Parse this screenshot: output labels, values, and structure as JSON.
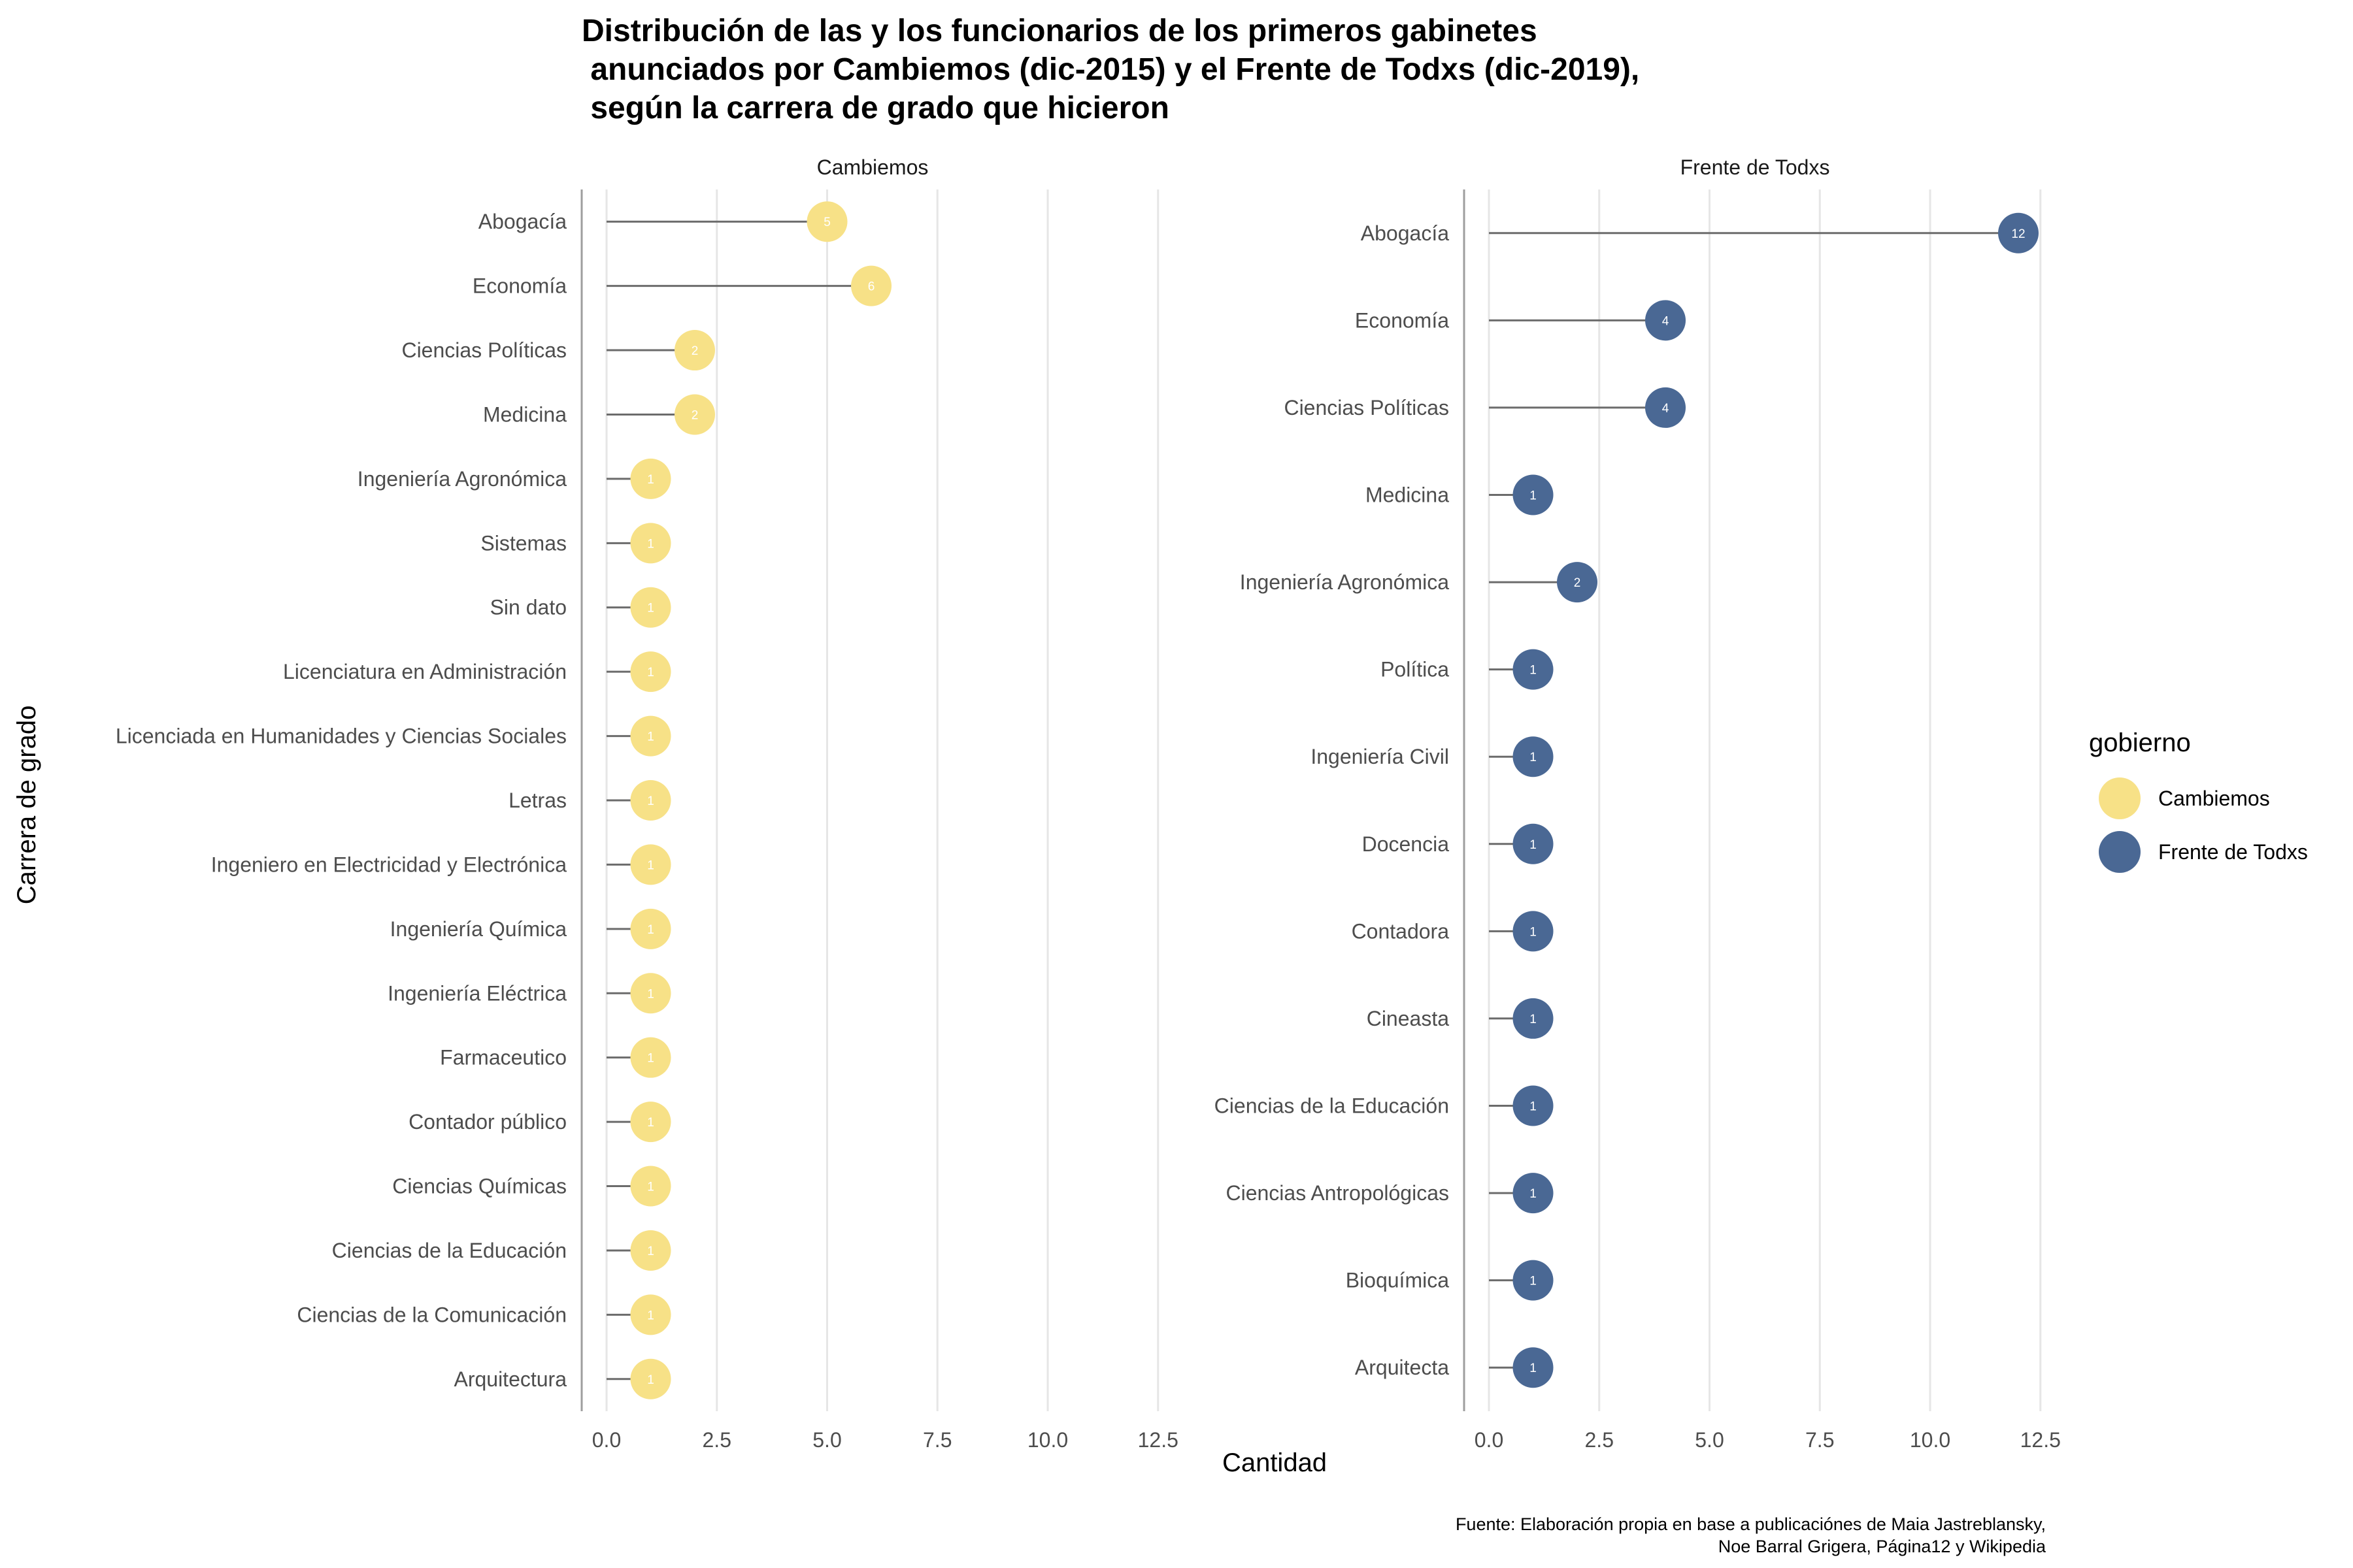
{
  "chart_data": {
    "type": "lollipop",
    "title_lines": [
      "Distribución de las y los funcionarios de los primeros gabinetes",
      " anunciados por Cambiemos (dic-2015) y el Frente de Todxs (dic-2019),",
      " según la carrera de grado que hicieron"
    ],
    "xlabel": "Cantidad",
    "ylabel": "Carrera de grado",
    "xlim": [
      0,
      12.5
    ],
    "x_ticks": [
      "0.0",
      "2.5",
      "5.0",
      "7.5",
      "10.0",
      "12.5"
    ],
    "x_tick_values": [
      0,
      2.5,
      5,
      7.5,
      10,
      12.5
    ],
    "legend": {
      "title": "gobierno",
      "entries": [
        {
          "name": "Cambiemos",
          "color": "#f7e187"
        },
        {
          "name": "Frente de Todxs",
          "color": "#4a6894"
        }
      ]
    },
    "caption_lines": [
      "Fuente: Elaboración propia en base a publicaciónes de Maia Jastreblansky,",
      "Noe Barral Grigera, Página12 y Wikipedia"
    ],
    "panels": [
      {
        "name": "Cambiemos",
        "color": "#f7e187",
        "label_color": "#ffffff",
        "categories": [
          "Abogacía",
          "Economía",
          "Ciencias Políticas",
          "Medicina",
          "Ingeniería Agronómica",
          "Sistemas",
          "Sin dato",
          "Licenciatura en Administración",
          "Licenciada en Humanidades y Ciencias Sociales",
          "Letras",
          "Ingeniero en Electricidad y Electrónica",
          "Ingeniería Química",
          "Ingeniería Eléctrica",
          "Farmaceutico",
          "Contador público",
          "Ciencias Químicas",
          "Ciencias de la Educación",
          "Ciencias de la Comunicación",
          "Arquitectura"
        ],
        "values": [
          5,
          6,
          2,
          2,
          1,
          1,
          1,
          1,
          1,
          1,
          1,
          1,
          1,
          1,
          1,
          1,
          1,
          1,
          1
        ]
      },
      {
        "name": "Frente de Todxs",
        "color": "#4a6894",
        "label_color": "#ffffff",
        "categories": [
          "Abogacía",
          "Economía",
          "Ciencias Políticas",
          "Medicina",
          "Ingeniería Agronómica",
          "Política",
          "Ingeniería Civil",
          "Docencia",
          "Contadora",
          "Cineasta",
          "Ciencias de la Educación",
          "Ciencias Antropológicas",
          "Bioquímica",
          "Arquitecta"
        ],
        "values": [
          12,
          4,
          4,
          1,
          2,
          1,
          1,
          1,
          1,
          1,
          1,
          1,
          1,
          1
        ]
      }
    ]
  }
}
